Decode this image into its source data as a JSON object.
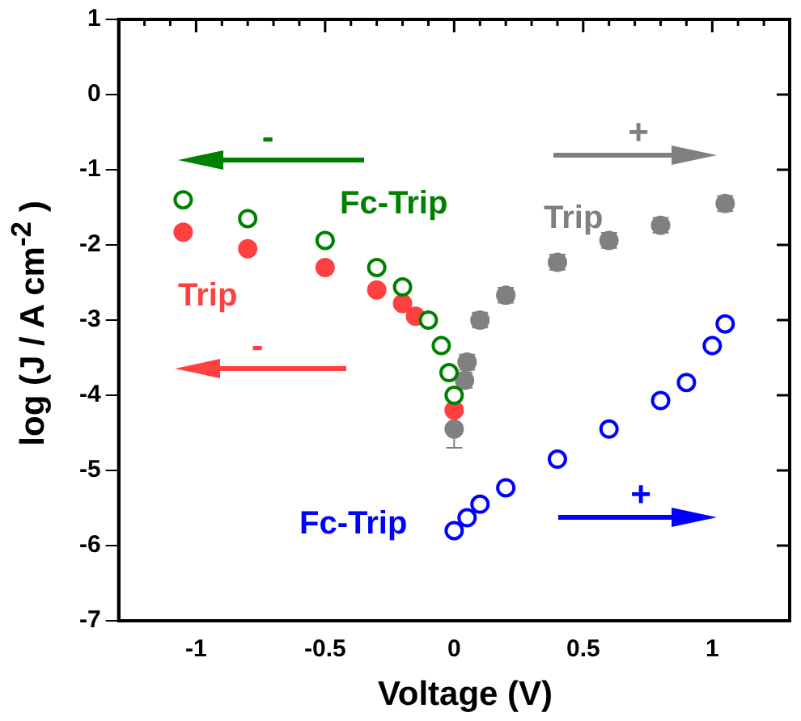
{
  "chart_data": {
    "type": "scatter",
    "xlabel": "Voltage (V)",
    "ylabel": "log (J / A cm$^{-2}$ )",
    "marker": "circle",
    "grid": false,
    "legend": false,
    "xlim": [
      -1.3,
      1.3
    ],
    "ylim": [
      -7,
      1
    ],
    "xticks": [
      {
        "value": -1.2,
        "label": null
      },
      {
        "value": -1.1,
        "label": null
      },
      -1,
      {
        "value": -0.9,
        "label": null
      },
      {
        "value": -0.8,
        "label": null
      },
      {
        "value": -0.7,
        "label": null
      },
      {
        "value": -0.6,
        "label": null
      },
      -0.5,
      {
        "value": -0.4,
        "label": null
      },
      {
        "value": -0.3,
        "label": null
      },
      {
        "value": -0.2,
        "label": null
      },
      {
        "value": -0.1,
        "label": null
      },
      0,
      {
        "value": 0.1,
        "label": null
      },
      {
        "value": 0.2,
        "label": null
      },
      {
        "value": 0.3,
        "label": null
      },
      {
        "value": 0.4,
        "label": null
      },
      0.5,
      {
        "value": 0.6,
        "label": null
      },
      {
        "value": 0.7,
        "label": null
      },
      {
        "value": 0.8,
        "label": null
      },
      {
        "value": 0.9,
        "label": null
      },
      1,
      {
        "value": 1.1,
        "label": null
      },
      {
        "value": 1.2,
        "label": null
      }
    ],
    "yticks": [
      -7,
      -6,
      -5,
      -4,
      -3,
      -2,
      -1,
      0,
      1
    ],
    "series": [
      {
        "name": "Fc-Trip",
        "color": "#008000",
        "x": [
          -1.05,
          -0.8,
          -0.5,
          -0.3,
          -0.2,
          -0.1,
          -0.05,
          -0.02,
          0
        ],
        "values": [
          -1.4,
          -1.65,
          -1.94,
          -2.3,
          -2.56,
          -3.0,
          -3.34,
          -3.7,
          -4.0
        ]
      },
      {
        "name": "Trip",
        "color": "#ff4040",
        "x": [
          -1.05,
          -0.8,
          -0.5,
          -0.3,
          -0.2,
          -0.15,
          0
        ],
        "values": [
          -1.83,
          -2.05,
          -2.3,
          -2.6,
          -2.78,
          -2.95,
          -4.2
        ]
      },
      {
        "name": "Trip",
        "color": "#808080",
        "x": [
          0,
          0.04,
          0.05,
          0.1,
          0.2,
          0.4,
          0.6,
          0.8,
          1.05
        ],
        "values": [
          -4.45,
          -3.8,
          -3.56,
          -3.0,
          -2.67,
          -2.23,
          -1.94,
          -1.74,
          -1.45
        ],
        "errors": [
          0.25,
          0.1,
          0.1,
          0.1,
          0.1,
          0.1,
          0.1,
          0.1,
          0.1
        ]
      },
      {
        "name": "Fc-Trip",
        "color": "#0000ff",
        "x": [
          0,
          0.05,
          0.1,
          0.2,
          0.4,
          0.6,
          0.8,
          0.9,
          1.0,
          1.05
        ],
        "values": [
          -5.8,
          -5.63,
          -5.45,
          -5.23,
          -4.85,
          -4.45,
          -4.07,
          -3.83,
          -3.34,
          -3.05
        ]
      }
    ],
    "annotations": [
      "-",
      "-",
      "+",
      "+"
    ]
  }
}
